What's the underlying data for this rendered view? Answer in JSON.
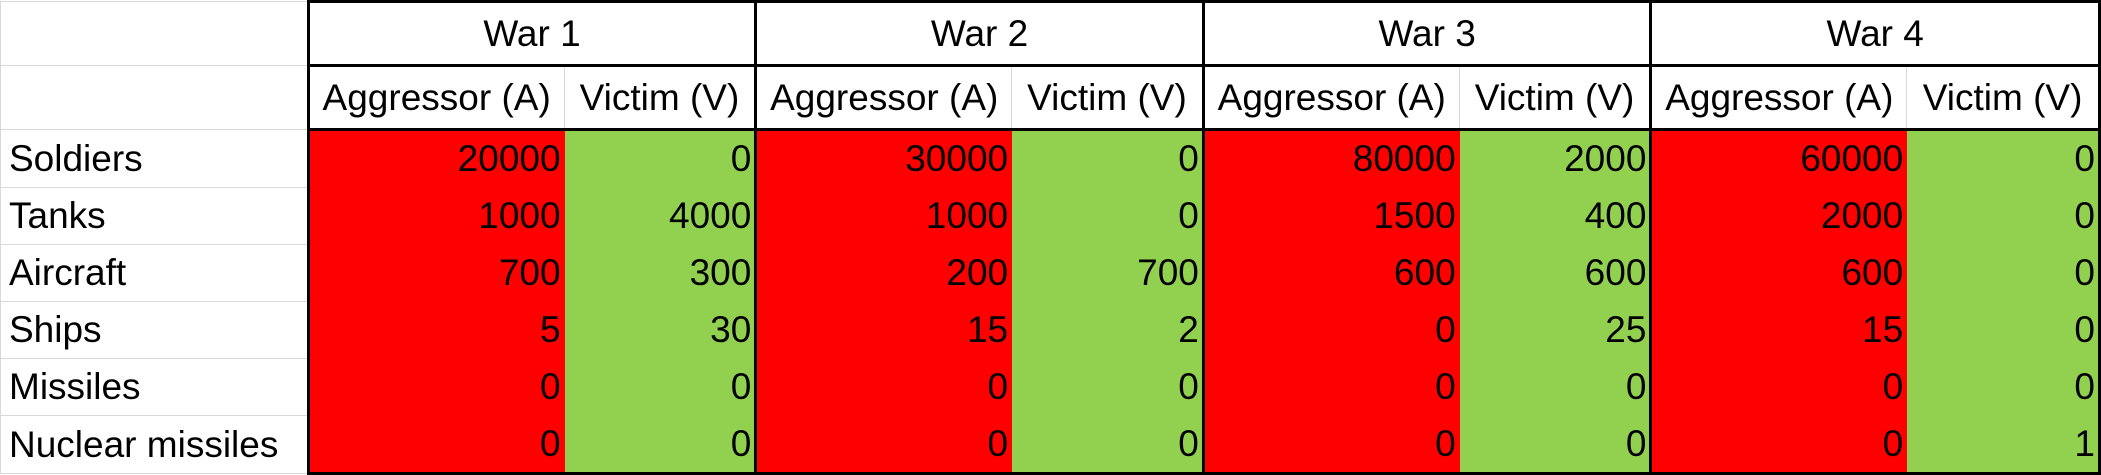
{
  "corner_label": "",
  "wars": [
    "War 1",
    "War 2",
    "War 3",
    "War 4"
  ],
  "subheaders": {
    "aggressor": "Aggressor (A)",
    "victim": "Victim (V)"
  },
  "colors": {
    "aggressor_fill": "#ff0000",
    "victim_fill": "#92d050",
    "border": "#000000"
  },
  "rows": [
    {
      "label": "Soldiers",
      "values": [
        "20000",
        "0",
        "30000",
        "0",
        "80000",
        "2000",
        "60000",
        "0"
      ]
    },
    {
      "label": "Tanks",
      "values": [
        "1000",
        "4000",
        "1000",
        "0",
        "1500",
        "400",
        "2000",
        "0"
      ]
    },
    {
      "label": "Aircraft",
      "values": [
        "700",
        "300",
        "200",
        "700",
        "600",
        "600",
        "600",
        "0"
      ]
    },
    {
      "label": "Ships",
      "values": [
        "5",
        "30",
        "15",
        "2",
        "0",
        "25",
        "15",
        "0"
      ]
    },
    {
      "label": "Missiles",
      "values": [
        "0",
        "0",
        "0",
        "0",
        "0",
        "0",
        "0",
        "0"
      ]
    },
    {
      "label": "Nuclear missiles",
      "values": [
        "0",
        "0",
        "0",
        "0",
        "0",
        "0",
        "0",
        "1"
      ]
    }
  ]
}
